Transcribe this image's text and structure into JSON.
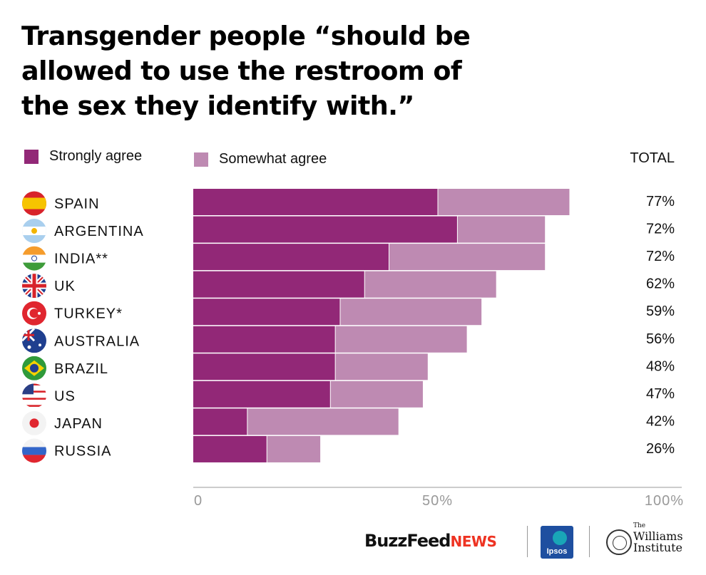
{
  "title_lines": [
    "Transgender people “should be",
    "allowed to use the restroom of",
    "the sex they identify with.”"
  ],
  "colors": {
    "strongly": "#922877",
    "somewhat": "#be8ab2",
    "axis": "#bbbbbb",
    "tick_text": "#999999"
  },
  "logos": {
    "buzzfeed": "BuzzFeed",
    "news": "NEWS",
    "ipsos": "Ipsos",
    "williams_the": "The",
    "williams_name": "Williams",
    "williams_institute": "Institute"
  },
  "chart_data": {
    "type": "bar",
    "orientation": "horizontal",
    "stacked": true,
    "title": "Transgender people “should be allowed to use the restroom of the sex they identify with.”",
    "categories": [
      "SPAIN",
      "ARGENTINA",
      "INDIA**",
      "UK",
      "TURKEY*",
      "AUSTRALIA",
      "BRAZIL",
      "US",
      "JAPAN",
      "RUSSIA"
    ],
    "series": [
      {
        "name": "Strongly agree",
        "values": [
          50,
          54,
          40,
          35,
          30,
          29,
          29,
          28,
          11,
          15
        ]
      },
      {
        "name": "Somewhat agree",
        "values": [
          27,
          18,
          32,
          27,
          29,
          27,
          19,
          19,
          31,
          11
        ]
      }
    ],
    "totals_header": "TOTAL",
    "totals": [
      "77%",
      "72%",
      "72%",
      "62%",
      "59%",
      "56%",
      "48%",
      "47%",
      "42%",
      "26%"
    ],
    "x_ticks": [
      "0",
      "50%",
      "100%"
    ],
    "xlim": [
      0,
      100
    ],
    "legend_position": "top",
    "grid": false,
    "flags": [
      "spain-flag-icon",
      "argentina-flag-icon",
      "india-flag-icon",
      "uk-flag-icon",
      "turkey-flag-icon",
      "australia-flag-icon",
      "brazil-flag-icon",
      "us-flag-icon",
      "japan-flag-icon",
      "russia-flag-icon"
    ]
  }
}
